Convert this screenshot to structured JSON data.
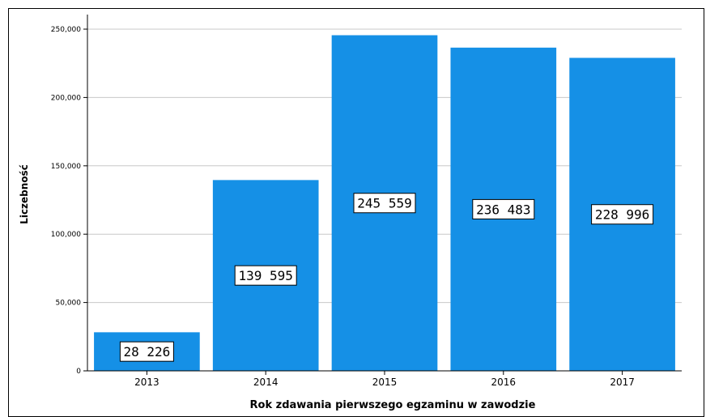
{
  "chart_data": {
    "type": "bar",
    "categories": [
      "2013",
      "2014",
      "2015",
      "2016",
      "2017"
    ],
    "values": [
      28226,
      139595,
      245559,
      236483,
      228996
    ],
    "data_labels": [
      "28 226",
      "139 595",
      "245 559",
      "236 483",
      "228 996"
    ],
    "xlabel": "Rok zdawania pierwszego egzaminu w zawodzie",
    "ylabel": "Liczebność",
    "ylim": [
      0,
      250000
    ],
    "yticks": [
      0,
      50000,
      100000,
      150000,
      200000,
      250000
    ],
    "ytick_labels": [
      "0",
      "50,000",
      "100,000",
      "150,000",
      "200,000",
      "250,000"
    ],
    "grid": true,
    "bar_color": "#1590e6",
    "label_box_color": "#ffffff"
  }
}
